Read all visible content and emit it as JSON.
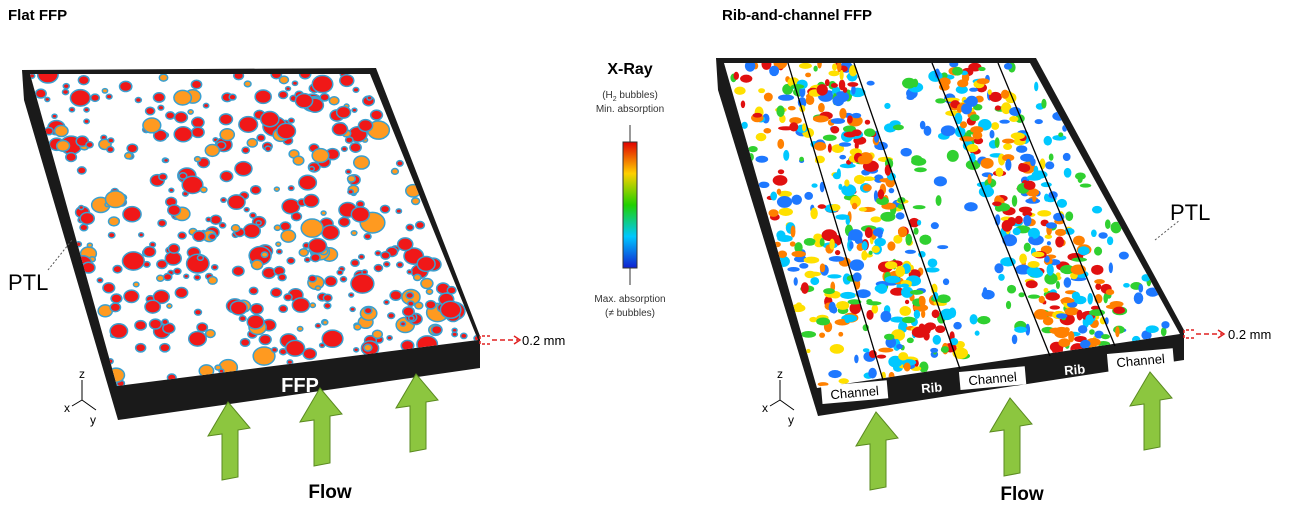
{
  "left_panel": {
    "title": "Flat FFP",
    "ptl_label": "PTL",
    "base_label": "FFP",
    "flow_label": "Flow",
    "thickness_label": "0.2 mm",
    "axes": {
      "x": "x",
      "y": "y",
      "z": "z"
    }
  },
  "right_panel": {
    "title": "Rib-and-channel FFP",
    "ptl_label": "PTL",
    "base_segments": [
      "Channel",
      "Rib",
      "Channel",
      "Rib",
      "Channel"
    ],
    "flow_label": "Flow",
    "thickness_label": "0.2 mm",
    "axes": {
      "x": "x",
      "y": "y",
      "z": "z"
    }
  },
  "colorbar": {
    "title": "X-Ray",
    "top_label": {
      "line1": [
        "(H",
        "2",
        " bubbles)"
      ],
      "line2": "Min. absorption"
    },
    "bottom_label": {
      "line1": "Max. absorption",
      "line2": "(≠ bubbles)"
    }
  }
}
